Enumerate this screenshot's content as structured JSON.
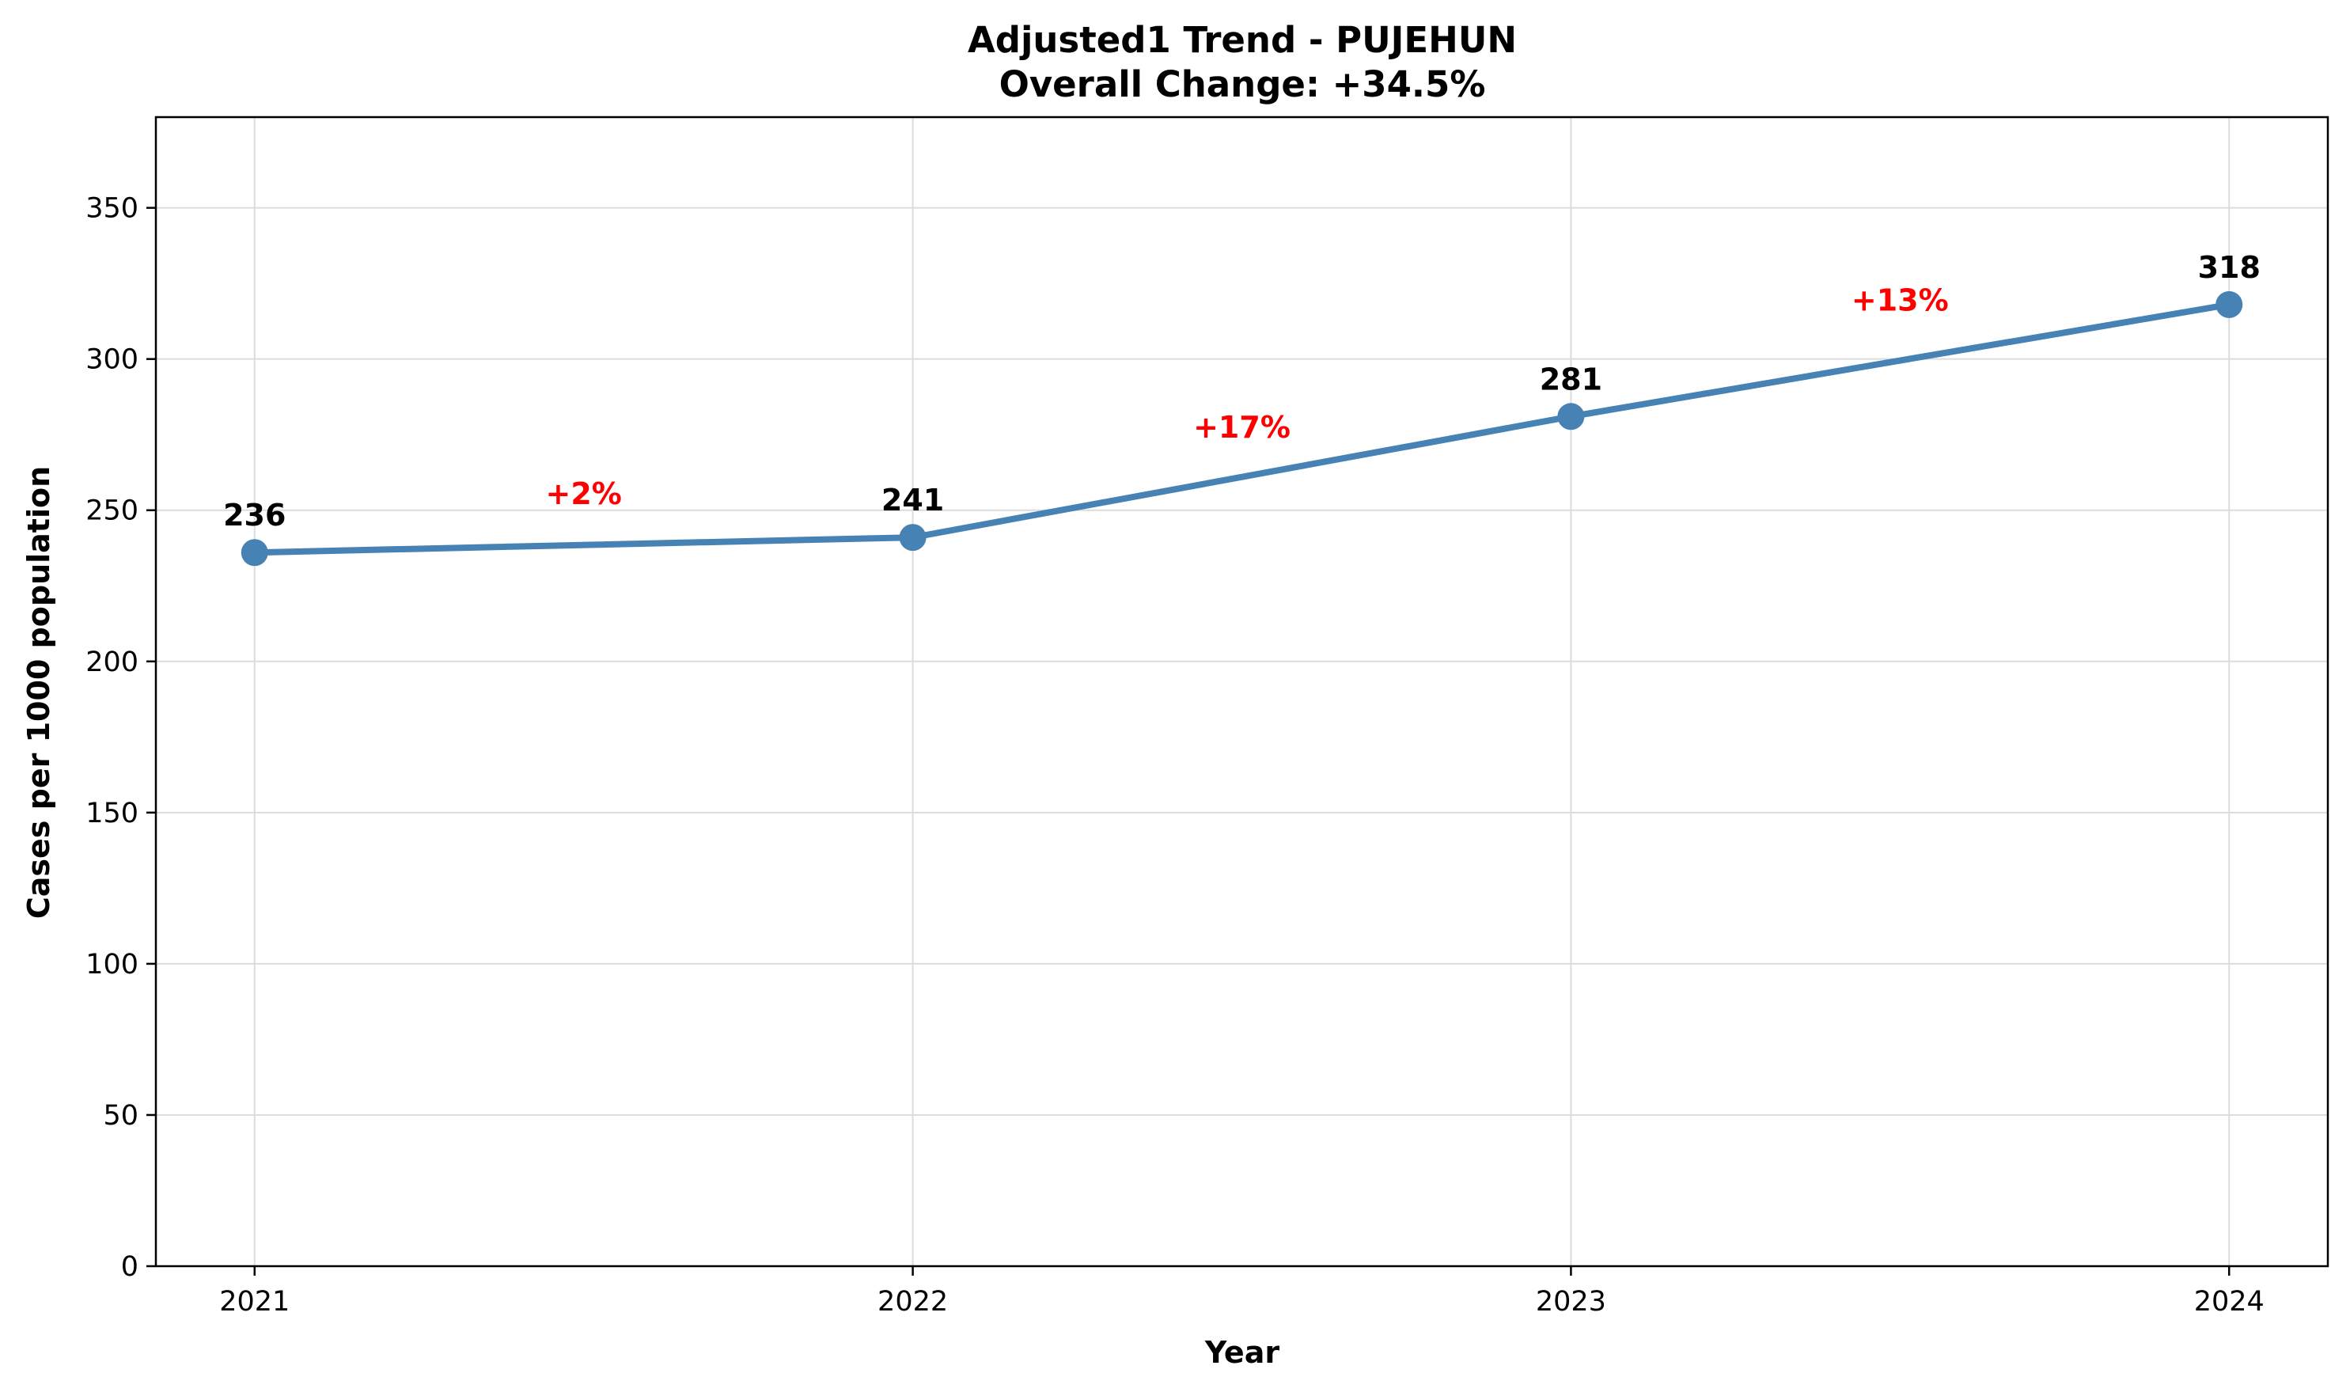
{
  "chart_data": {
    "type": "line",
    "title": "Adjusted1 Trend - PUJEHUN",
    "subtitle": "Overall Change: +34.5%",
    "xlabel": "Year",
    "ylabel": "Cases per 1000 population",
    "x": [
      "2021",
      "2022",
      "2023",
      "2024"
    ],
    "series": [
      {
        "values": [
          236,
          241,
          281,
          318
        ],
        "color": "#4682b4"
      }
    ],
    "data_labels": [
      "236",
      "241",
      "281",
      "318"
    ],
    "change_labels": [
      {
        "text": "+2%",
        "x_pos": 0.5,
        "y": 252
      },
      {
        "text": "+17%",
        "x_pos": 1.5,
        "y": 274
      },
      {
        "text": "+13%",
        "x_pos": 2.5,
        "y": 316
      }
    ],
    "change_color": "#ff0000",
    "ylim": [
      0,
      380
    ],
    "xlim": [
      -0.15,
      3.15
    ],
    "yticks": [
      0,
      50,
      100,
      150,
      200,
      250,
      300,
      350
    ],
    "grid": true
  }
}
